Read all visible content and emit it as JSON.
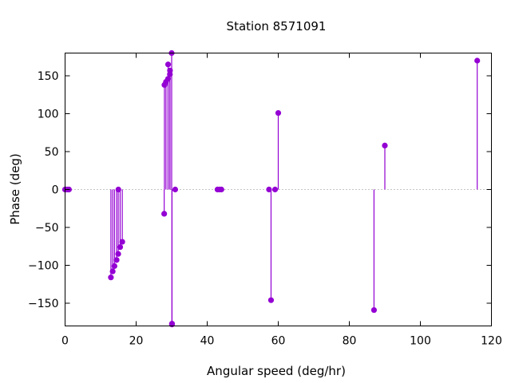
{
  "chart_data": {
    "type": "scatter",
    "style": "impulses-with-points",
    "title": "Station 8571091",
    "xlabel": "Angular speed (deg/hr)",
    "ylabel": "Phase (deg)",
    "xlim": [
      0,
      120
    ],
    "ylim": [
      -180,
      180
    ],
    "xticks": [
      0,
      20,
      40,
      60,
      80,
      100,
      120
    ],
    "yticks": [
      -150,
      -100,
      -50,
      0,
      50,
      100,
      150
    ],
    "grid": false,
    "baseline": 0,
    "color": "#9400d3",
    "series": [
      {
        "points": [
          [
            0.0,
            0
          ],
          [
            0.04,
            0
          ],
          [
            0.08,
            0
          ],
          [
            0.5,
            0
          ],
          [
            0.54,
            0
          ],
          [
            1.0,
            0
          ],
          [
            1.1,
            0
          ],
          [
            12.9,
            -116
          ],
          [
            13.4,
            -108
          ],
          [
            13.9,
            -101
          ],
          [
            14.5,
            -93
          ],
          [
            14.96,
            -85
          ],
          [
            15.0,
            0
          ],
          [
            15.5,
            -76
          ],
          [
            16.1,
            -69
          ],
          [
            27.9,
            -32
          ],
          [
            27.97,
            138
          ],
          [
            28.4,
            142
          ],
          [
            28.98,
            146
          ],
          [
            29.5,
            152
          ],
          [
            29.53,
            157
          ],
          [
            29.0,
            165
          ],
          [
            30.0,
            180
          ],
          [
            30.1,
            -177
          ],
          [
            30.08,
            -178
          ],
          [
            31.0,
            0
          ],
          [
            42.9,
            0
          ],
          [
            43.5,
            0
          ],
          [
            44.0,
            0
          ],
          [
            57.4,
            0
          ],
          [
            57.97,
            -146
          ],
          [
            59.1,
            0
          ],
          [
            60.0,
            101
          ],
          [
            86.95,
            -159
          ],
          [
            90.0,
            58
          ],
          [
            116.0,
            170
          ]
        ]
      }
    ]
  }
}
